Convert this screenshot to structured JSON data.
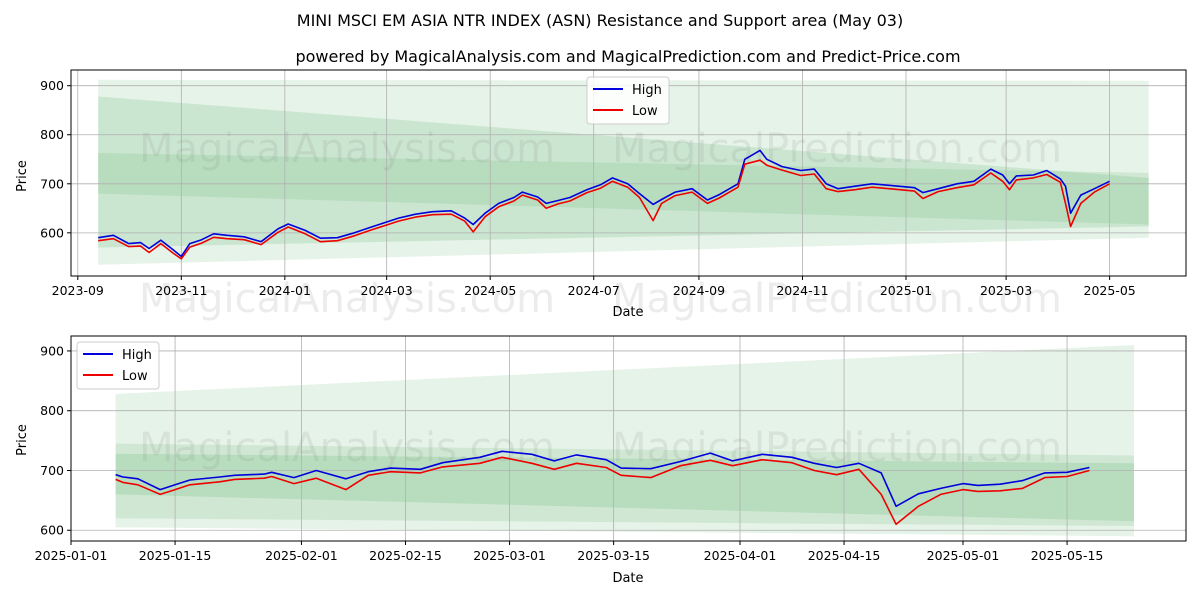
{
  "title": "MINI MSCI EM ASIA NTR INDEX (ASN) Resistance and Support area (May 03)",
  "subtitle": "powered by MagicalAnalysis.com and MagicalPrediction.com and Predict-Price.com",
  "watermarks": [
    "MagicalAnalysis.com",
    "MagicalPrediction.com"
  ],
  "colors": {
    "high": "#0000dd",
    "low": "#ee0000",
    "band": "#2e9e3e"
  },
  "chart_data": [
    {
      "type": "line",
      "xlabel": "Date",
      "ylabel": "Price",
      "xlim": [
        "2023-08-28",
        "2025-06-15"
      ],
      "ylim": [
        512,
        932
      ],
      "yticks": [
        600,
        700,
        800,
        900
      ],
      "xticks": [
        "2023-09",
        "2023-11",
        "2024-01",
        "2024-03",
        "2024-05",
        "2024-07",
        "2024-09",
        "2024-11",
        "2025-01",
        "2025-03",
        "2025-05"
      ],
      "legend": "top-center",
      "grid": true,
      "series": [
        {
          "name": "High",
          "points": [
            [
              "2023-09-13",
              590
            ],
            [
              "2023-09-22",
              595
            ],
            [
              "2023-10-01",
              578
            ],
            [
              "2023-10-08",
              580
            ],
            [
              "2023-10-13",
              568
            ],
            [
              "2023-10-20",
              585
            ],
            [
              "2023-10-27",
              566
            ],
            [
              "2023-11-01",
              552
            ],
            [
              "2023-11-06",
              578
            ],
            [
              "2023-11-13",
              586
            ],
            [
              "2023-11-20",
              598
            ],
            [
              "2023-11-28",
              595
            ],
            [
              "2023-12-08",
              592
            ],
            [
              "2023-12-18",
              582
            ],
            [
              "2023-12-28",
              608
            ],
            [
              "2024-01-03",
              618
            ],
            [
              "2024-01-13",
              605
            ],
            [
              "2024-01-22",
              589
            ],
            [
              "2024-02-01",
              590
            ],
            [
              "2024-02-11",
              600
            ],
            [
              "2024-02-21",
              612
            ],
            [
              "2024-03-01",
              622
            ],
            [
              "2024-03-08",
              630
            ],
            [
              "2024-03-18",
              638
            ],
            [
              "2024-03-28",
              643
            ],
            [
              "2024-04-08",
              645
            ],
            [
              "2024-04-16",
              630
            ],
            [
              "2024-04-21",
              617
            ],
            [
              "2024-04-28",
              640
            ],
            [
              "2024-05-06",
              660
            ],
            [
              "2024-05-15",
              672
            ],
            [
              "2024-05-20",
              683
            ],
            [
              "2024-05-29",
              673
            ],
            [
              "2024-06-03",
              660
            ],
            [
              "2024-06-10",
              666
            ],
            [
              "2024-06-17",
              672
            ],
            [
              "2024-06-27",
              688
            ],
            [
              "2024-07-05",
              698
            ],
            [
              "2024-07-12",
              712
            ],
            [
              "2024-07-21",
              700
            ],
            [
              "2024-07-28",
              680
            ],
            [
              "2024-08-05",
              658
            ],
            [
              "2024-08-10",
              668
            ],
            [
              "2024-08-18",
              683
            ],
            [
              "2024-08-28",
              690
            ],
            [
              "2024-09-06",
              667
            ],
            [
              "2024-09-13",
              678
            ],
            [
              "2024-09-24",
              700
            ],
            [
              "2024-09-28",
              750
            ],
            [
              "2024-10-07",
              768
            ],
            [
              "2024-10-11",
              750
            ],
            [
              "2024-10-20",
              735
            ],
            [
              "2024-10-31",
              727
            ],
            [
              "2024-11-08",
              730
            ],
            [
              "2024-11-15",
              700
            ],
            [
              "2024-11-22",
              690
            ],
            [
              "2024-12-02",
              695
            ],
            [
              "2024-12-12",
              700
            ],
            [
              "2024-12-22",
              697
            ],
            [
              "2025-01-06",
              692
            ],
            [
              "2025-01-11",
              682
            ],
            [
              "2025-01-20",
              690
            ],
            [
              "2025-01-31",
              700
            ],
            [
              "2025-02-10",
              705
            ],
            [
              "2025-02-20",
              730
            ],
            [
              "2025-02-27",
              718
            ],
            [
              "2025-03-03",
              700
            ],
            [
              "2025-03-07",
              716
            ],
            [
              "2025-03-17",
              718
            ],
            [
              "2025-03-25",
              727
            ],
            [
              "2025-04-02",
              710
            ],
            [
              "2025-04-05",
              695
            ],
            [
              "2025-04-08",
              640
            ],
            [
              "2025-04-14",
              677
            ],
            [
              "2025-04-22",
              690
            ],
            [
              "2025-05-01",
              705
            ]
          ]
        },
        {
          "name": "Low",
          "points": [
            [
              "2023-09-13",
              584
            ],
            [
              "2023-09-22",
              588
            ],
            [
              "2023-10-01",
              572
            ],
            [
              "2023-10-08",
              573
            ],
            [
              "2023-10-13",
              560
            ],
            [
              "2023-10-20",
              578
            ],
            [
              "2023-10-27",
              559
            ],
            [
              "2023-11-01",
              547
            ],
            [
              "2023-11-06",
              571
            ],
            [
              "2023-11-13",
              579
            ],
            [
              "2023-11-20",
              591
            ],
            [
              "2023-11-28",
              588
            ],
            [
              "2023-12-08",
              586
            ],
            [
              "2023-12-18",
              576
            ],
            [
              "2023-12-28",
              601
            ],
            [
              "2024-01-03",
              612
            ],
            [
              "2024-01-13",
              598
            ],
            [
              "2024-01-22",
              582
            ],
            [
              "2024-02-01",
              584
            ],
            [
              "2024-02-11",
              594
            ],
            [
              "2024-02-21",
              606
            ],
            [
              "2024-03-01",
              616
            ],
            [
              "2024-03-08",
              624
            ],
            [
              "2024-03-18",
              632
            ],
            [
              "2024-03-28",
              637
            ],
            [
              "2024-04-08",
              638
            ],
            [
              "2024-04-16",
              624
            ],
            [
              "2024-04-21",
              602
            ],
            [
              "2024-04-28",
              633
            ],
            [
              "2024-05-06",
              653
            ],
            [
              "2024-05-15",
              665
            ],
            [
              "2024-05-20",
              677
            ],
            [
              "2024-05-29",
              667
            ],
            [
              "2024-06-03",
              650
            ],
            [
              "2024-06-10",
              659
            ],
            [
              "2024-06-17",
              665
            ],
            [
              "2024-06-27",
              682
            ],
            [
              "2024-07-05",
              691
            ],
            [
              "2024-07-12",
              705
            ],
            [
              "2024-07-21",
              693
            ],
            [
              "2024-07-28",
              672
            ],
            [
              "2024-08-05",
              625
            ],
            [
              "2024-08-10",
              660
            ],
            [
              "2024-08-18",
              676
            ],
            [
              "2024-08-28",
              683
            ],
            [
              "2024-09-06",
              660
            ],
            [
              "2024-09-13",
              671
            ],
            [
              "2024-09-24",
              693
            ],
            [
              "2024-09-28",
              740
            ],
            [
              "2024-10-07",
              748
            ],
            [
              "2024-10-11",
              738
            ],
            [
              "2024-10-20",
              728
            ],
            [
              "2024-10-31",
              717
            ],
            [
              "2024-11-08",
              720
            ],
            [
              "2024-11-15",
              690
            ],
            [
              "2024-11-22",
              684
            ],
            [
              "2024-12-02",
              688
            ],
            [
              "2024-12-12",
              693
            ],
            [
              "2024-12-22",
              690
            ],
            [
              "2025-01-06",
              685
            ],
            [
              "2025-01-11",
              670
            ],
            [
              "2025-01-20",
              684
            ],
            [
              "2025-01-31",
              692
            ],
            [
              "2025-02-10",
              698
            ],
            [
              "2025-02-20",
              722
            ],
            [
              "2025-02-27",
              705
            ],
            [
              "2025-03-03",
              688
            ],
            [
              "2025-03-07",
              708
            ],
            [
              "2025-03-17",
              712
            ],
            [
              "2025-03-25",
              719
            ],
            [
              "2025-04-02",
              703
            ],
            [
              "2025-04-05",
              660
            ],
            [
              "2025-04-08",
              613
            ],
            [
              "2025-04-14",
              660
            ],
            [
              "2025-04-22",
              683
            ],
            [
              "2025-05-01",
              700
            ]
          ]
        }
      ]
    },
    {
      "type": "line",
      "xlabel": "Date",
      "ylabel": "Price",
      "xlim": [
        "2025-01-01",
        "2025-05-31"
      ],
      "ylim": [
        582,
        925
      ],
      "yticks": [
        600,
        700,
        800,
        900
      ],
      "xticks": [
        "2025-01-01",
        "2025-01-15",
        "2025-02-01",
        "2025-02-15",
        "2025-03-01",
        "2025-03-15",
        "2025-04-01",
        "2025-04-15",
        "2025-05-01",
        "2025-05-15"
      ],
      "legend": "top-left",
      "grid": true,
      "series": [
        {
          "name": "High",
          "points": [
            [
              "2025-01-07",
              693
            ],
            [
              "2025-01-08",
              689
            ],
            [
              "2025-01-10",
              686
            ],
            [
              "2025-01-13",
              668
            ],
            [
              "2025-01-15",
              676
            ],
            [
              "2025-01-17",
              684
            ],
            [
              "2025-01-21",
              689
            ],
            [
              "2025-01-23",
              692
            ],
            [
              "2025-01-27",
              694
            ],
            [
              "2025-01-28",
              697
            ],
            [
              "2025-01-31",
              688
            ],
            [
              "2025-02-03",
              700
            ],
            [
              "2025-02-07",
              686
            ],
            [
              "2025-02-10",
              698
            ],
            [
              "2025-02-13",
              704
            ],
            [
              "2025-02-17",
              702
            ],
            [
              "2025-02-20",
              713
            ],
            [
              "2025-02-25",
              722
            ],
            [
              "2025-02-28",
              732
            ],
            [
              "2025-03-04",
              727
            ],
            [
              "2025-03-07",
              716
            ],
            [
              "2025-03-10",
              726
            ],
            [
              "2025-03-14",
              718
            ],
            [
              "2025-03-16",
              704
            ],
            [
              "2025-03-20",
              703
            ],
            [
              "2025-03-24",
              715
            ],
            [
              "2025-03-28",
              729
            ],
            [
              "2025-03-31",
              716
            ],
            [
              "2025-04-04",
              727
            ],
            [
              "2025-04-08",
              722
            ],
            [
              "2025-04-11",
              712
            ],
            [
              "2025-04-14",
              705
            ],
            [
              "2025-04-17",
              712
            ],
            [
              "2025-04-20",
              696
            ],
            [
              "2025-04-22",
              640
            ],
            [
              "2025-04-25",
              661
            ],
            [
              "2025-04-28",
              670
            ],
            [
              "2025-05-01",
              678
            ],
            [
              "2025-05-03",
              675
            ],
            [
              "2025-05-06",
              677
            ],
            [
              "2025-05-09",
              683
            ],
            [
              "2025-05-12",
              696
            ],
            [
              "2025-05-15",
              697
            ],
            [
              "2025-05-18",
              705
            ]
          ]
        },
        {
          "name": "Low",
          "points": [
            [
              "2025-01-07",
              685
            ],
            [
              "2025-01-08",
              680
            ],
            [
              "2025-01-10",
              676
            ],
            [
              "2025-01-13",
              660
            ],
            [
              "2025-01-15",
              668
            ],
            [
              "2025-01-17",
              676
            ],
            [
              "2025-01-21",
              681
            ],
            [
              "2025-01-23",
              685
            ],
            [
              "2025-01-27",
              687
            ],
            [
              "2025-01-28",
              690
            ],
            [
              "2025-01-31",
              678
            ],
            [
              "2025-02-03",
              687
            ],
            [
              "2025-02-07",
              668
            ],
            [
              "2025-02-10",
              692
            ],
            [
              "2025-02-13",
              698
            ],
            [
              "2025-02-17",
              696
            ],
            [
              "2025-02-20",
              706
            ],
            [
              "2025-02-25",
              712
            ],
            [
              "2025-02-28",
              722
            ],
            [
              "2025-03-04",
              712
            ],
            [
              "2025-03-07",
              702
            ],
            [
              "2025-03-10",
              712
            ],
            [
              "2025-03-14",
              705
            ],
            [
              "2025-03-16",
              692
            ],
            [
              "2025-03-20",
              688
            ],
            [
              "2025-03-24",
              708
            ],
            [
              "2025-03-28",
              717
            ],
            [
              "2025-03-31",
              708
            ],
            [
              "2025-04-04",
              718
            ],
            [
              "2025-04-08",
              713
            ],
            [
              "2025-04-11",
              700
            ],
            [
              "2025-04-14",
              693
            ],
            [
              "2025-04-17",
              702
            ],
            [
              "2025-04-20",
              660
            ],
            [
              "2025-04-22",
              610
            ],
            [
              "2025-04-25",
              640
            ],
            [
              "2025-04-28",
              660
            ],
            [
              "2025-05-01",
              668
            ],
            [
              "2025-05-03",
              665
            ],
            [
              "2025-05-06",
              666
            ],
            [
              "2025-05-09",
              670
            ],
            [
              "2025-05-12",
              688
            ],
            [
              "2025-05-15",
              690
            ],
            [
              "2025-05-18",
              700
            ]
          ]
        }
      ]
    }
  ]
}
